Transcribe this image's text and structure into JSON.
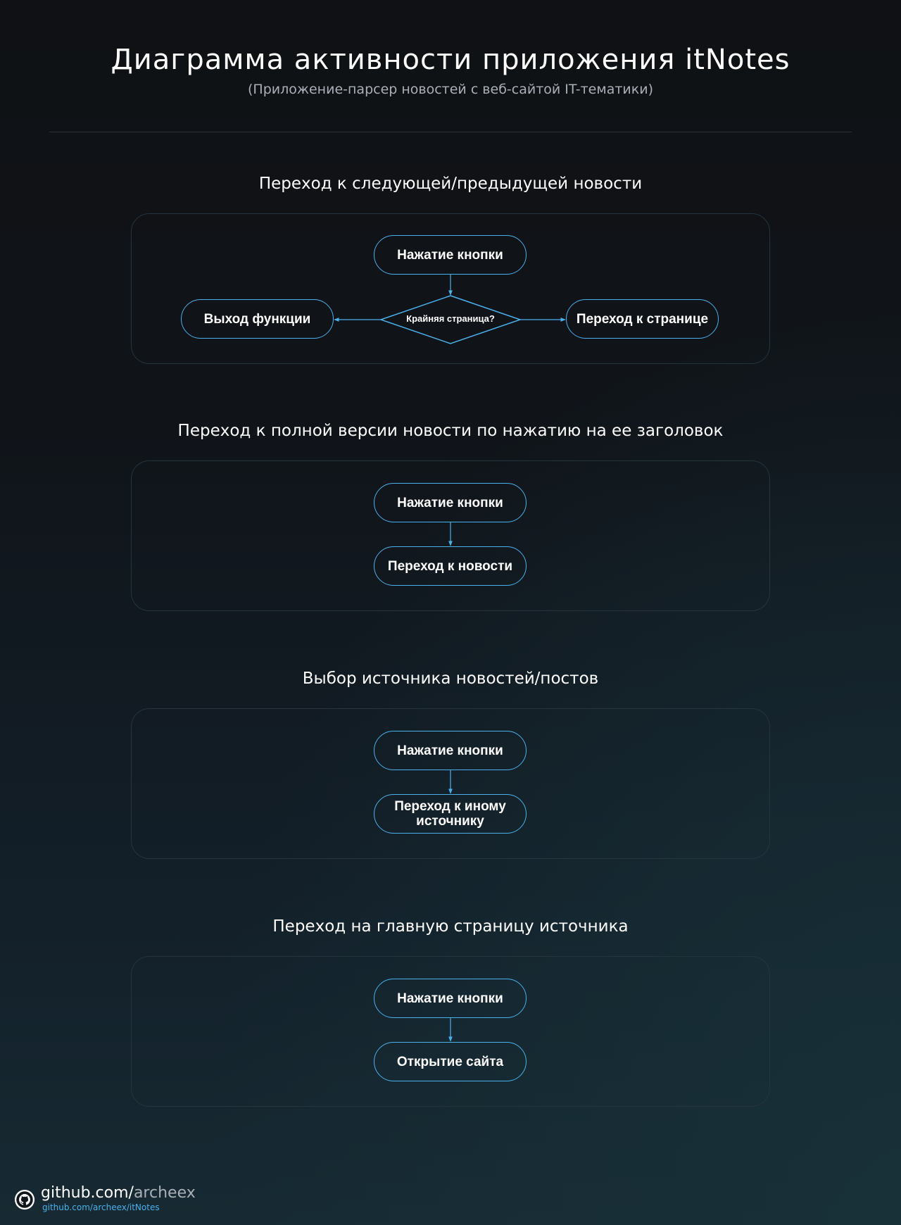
{
  "header": {
    "title": "Диаграмма активности приложения itNotes",
    "subtitle": "(Приложение-парсер новостей с веб-сайтой IT-тематики)"
  },
  "sections": [
    {
      "title": "Переход к следующей/предыдущей новости",
      "nodes": {
        "start": "Нажатие кнопки",
        "decision": "Крайняя страница?",
        "left": "Выход функции",
        "right": "Переход к странице"
      }
    },
    {
      "title": "Переход к полной версии новости по нажатию на ее заголовок",
      "nodes": {
        "start": "Нажатие кнопки",
        "end": "Переход к новости"
      }
    },
    {
      "title": "Выбор источника новостей/постов",
      "nodes": {
        "start": "Нажатие кнопки",
        "end_line1": "Переход к иному",
        "end_line2": "источнику"
      }
    },
    {
      "title": "Переход на главную страницу источника",
      "nodes": {
        "start": "Нажатие кнопки",
        "end": "Открытие сайта"
      }
    }
  ],
  "footer": {
    "icon": "github-icon",
    "domain": "github.com/",
    "user": "archeex",
    "repo_link": "github.com/archeex/itNotes"
  },
  "colors": {
    "accent": "#4ab1ee",
    "panel_border": "#26343d",
    "subtitle": "#a9b0b7"
  }
}
